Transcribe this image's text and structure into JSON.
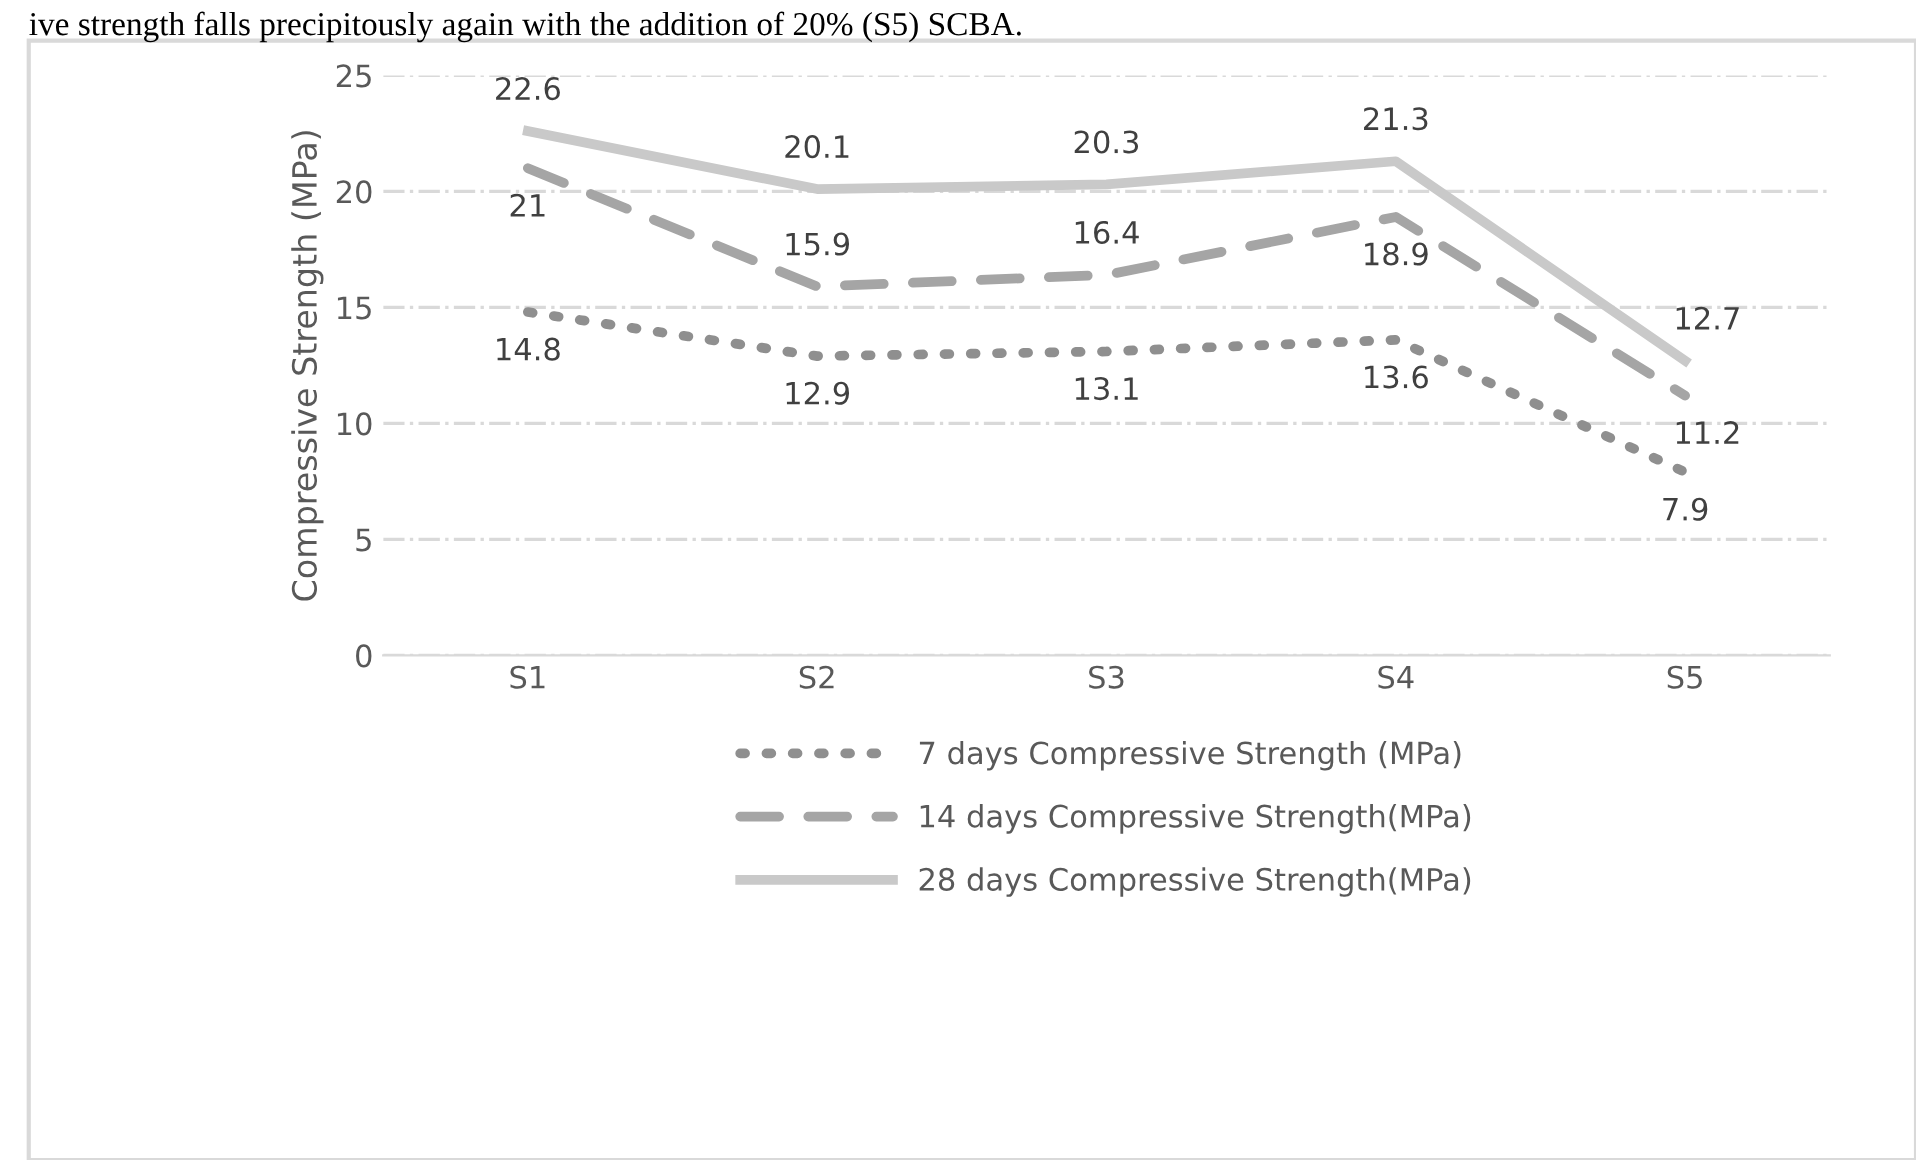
{
  "chart_data": {
    "type": "line",
    "categories": [
      "S1",
      "S2",
      "S3",
      "S4",
      "S5"
    ],
    "ylabel": "Compressive Strength (MPa)",
    "ylim": [
      0,
      25
    ],
    "yticks": [
      0,
      5,
      10,
      15,
      20,
      25
    ],
    "grid": "y",
    "legend": "bottom",
    "data_labels": true,
    "marker": "none",
    "annotations": [
      "ive strength falls precipitously again with the addition of 20% (S5) SCBA."
    ],
    "series": [
      {
        "name": "7 days Compressive Strength (MPa)",
        "color": "#8f8f8f",
        "line_style": "dotted",
        "values": [
          14.8,
          12.9,
          13.1,
          13.6,
          7.9
        ]
      },
      {
        "name": "14 days Compressive Strength(MPa)",
        "color": "#a5a5a5",
        "line_style": "dashed",
        "values": [
          21,
          15.9,
          16.4,
          18.9,
          11.2
        ]
      },
      {
        "name": "28 days Compressive Strength(MPa)",
        "color": "#c9c9c9",
        "line_style": "solid",
        "values": [
          22.6,
          20.1,
          20.3,
          21.3,
          12.7
        ]
      }
    ]
  }
}
